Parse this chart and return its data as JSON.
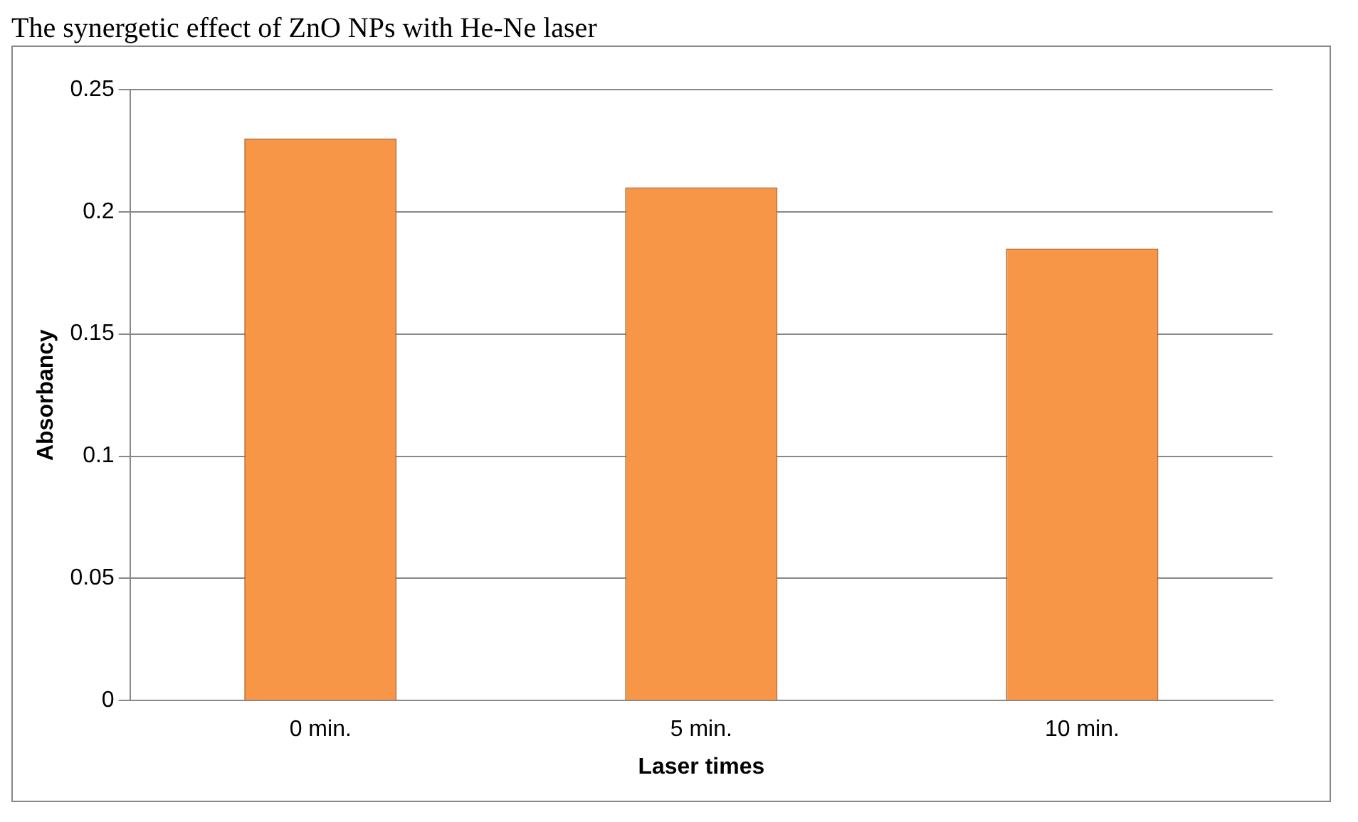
{
  "chart_data": {
    "type": "bar",
    "title": "The synergetic effect of ZnO NPs with He-Ne laser",
    "xlabel": "Laser times",
    "ylabel": "Absorbancy",
    "categories": [
      "0 min.",
      "5 min.",
      "10 min."
    ],
    "values": [
      0.23,
      0.21,
      0.185
    ],
    "color": "#f79646",
    "ylim": [
      0,
      0.25
    ],
    "yticks": [
      0,
      0.05,
      0.1,
      0.15,
      0.2,
      0.25
    ],
    "grid": "y",
    "legend": false
  }
}
